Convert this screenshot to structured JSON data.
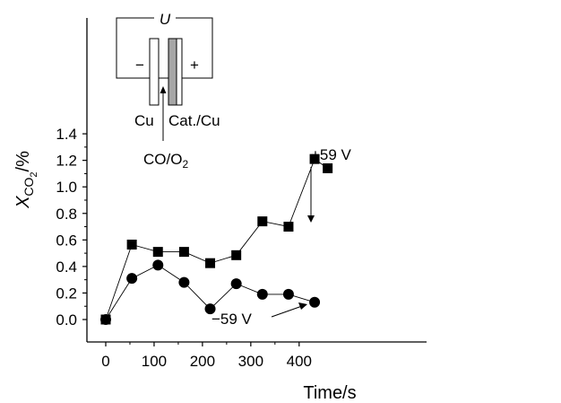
{
  "chart_data": {
    "type": "line",
    "xlabel": "Time/s",
    "ylabel_main": "X",
    "ylabel_sub": "CO",
    "ylabel_subsub": "2",
    "ylabel_unit": "/%",
    "xlim": [
      -10,
      470
    ],
    "ylim": [
      -0.1,
      1.4
    ],
    "xticks": [
      0,
      100,
      200,
      300,
      400
    ],
    "yticks": [
      0.0,
      0.2,
      0.4,
      0.6,
      0.8,
      1.0,
      1.2,
      1.4
    ],
    "xtick_labels": [
      "0",
      "100",
      "200",
      "300",
      "400"
    ],
    "ytick_labels": [
      "0.0",
      "0.2",
      "0.4",
      "0.6",
      "0.8",
      "1.0",
      "1.2",
      "1.4"
    ],
    "series": [
      {
        "marker": "square",
        "x": [
          0,
          54,
          108,
          162,
          216,
          270,
          324,
          378,
          432,
          459
        ],
        "y": [
          0.0,
          0.565,
          0.51,
          0.51,
          0.425,
          0.485,
          0.74,
          0.7,
          1.21,
          1.14
        ]
      },
      {
        "marker": "circle",
        "x": [
          0,
          54,
          108,
          162,
          216,
          270,
          324,
          378,
          432
        ],
        "y": [
          0.0,
          0.31,
          0.41,
          0.28,
          0.08,
          0.27,
          0.19,
          0.19,
          0.13
        ]
      }
    ],
    "annotations": [
      {
        "text": "+59 V",
        "target_x": 216,
        "target_y": 0.425
      },
      {
        "text": "−59 V",
        "target_x": 216,
        "target_y": 0.08
      }
    ],
    "inset": {
      "voltage_label": "U",
      "minus_sign": "−",
      "plus_sign": "+",
      "left_electrode": "Cu",
      "right_electrode": "Cat./Cu",
      "gas_main": "CO/O",
      "gas_sub": "2"
    }
  }
}
